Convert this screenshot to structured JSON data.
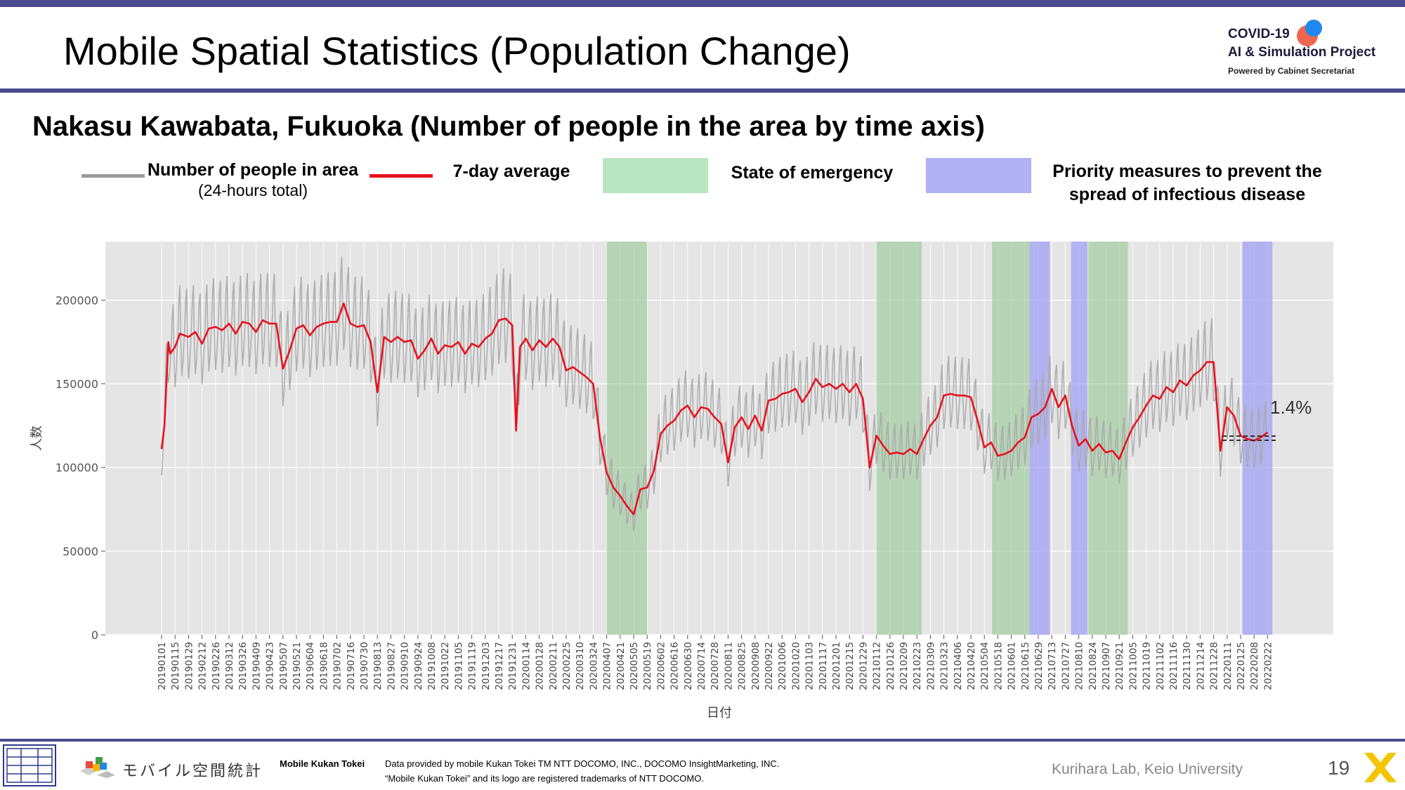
{
  "header": {
    "title": "Mobile Spatial Statistics (Population Change)",
    "logo_line1": "COVID-19",
    "logo_line2": "AI & Simulation Project",
    "logo_line3": "Powered by Cabinet Secretariat"
  },
  "subtitle": "Nakasu Kawabata, Fukuoka (Number of people in the area by time axis)",
  "legend": {
    "people_label": "Number of people in area",
    "people_sub": "(24-hours total)",
    "avg_label": "7-day average",
    "emergency_label": "State of emergency",
    "priority_label_1": "Priority measures to prevent the",
    "priority_label_2": "spread of infectious disease"
  },
  "colors": {
    "accent": "#4b4a8e",
    "daily_line": "#a8a8a8",
    "avg_line": "#e8121d",
    "emergency": "#b9dfb9",
    "priority": "#b1b1f5",
    "plot_bg": "#e5e5e5"
  },
  "chart_data": {
    "type": "line",
    "title": "",
    "xlabel": "日付",
    "ylabel": "人数",
    "ylim": [
      0,
      235000
    ],
    "yticks": [
      0,
      50000,
      100000,
      150000,
      200000
    ],
    "grid": true,
    "x_tick_labels": [
      "20190101",
      "20190115",
      "20190129",
      "20190212",
      "20190226",
      "20190312",
      "20190326",
      "20190409",
      "20190423",
      "20190507",
      "20190521",
      "20190604",
      "20190618",
      "20190702",
      "20190716",
      "20190730",
      "20190813",
      "20190827",
      "20190910",
      "20190924",
      "20191008",
      "20191022",
      "20191105",
      "20191119",
      "20191203",
      "20191217",
      "20191231",
      "20200114",
      "20200128",
      "20200211",
      "20200225",
      "20200310",
      "20200324",
      "20200407",
      "20200421",
      "20200505",
      "20200519",
      "20200602",
      "20200616",
      "20200630",
      "20200714",
      "20200728",
      "20200811",
      "20200825",
      "20200908",
      "20200922",
      "20201006",
      "20201020",
      "20201103",
      "20201117",
      "20201201",
      "20201215",
      "20201229",
      "20210112",
      "20210126",
      "20210209",
      "20210223",
      "20210309",
      "20210323",
      "20210406",
      "20210420",
      "20210504",
      "20210518",
      "20210601",
      "20210615",
      "20210629",
      "20210713",
      "20210727",
      "20210810",
      "20210824",
      "20210907",
      "20210921",
      "20211005",
      "20211019",
      "20211102",
      "20211116",
      "20211130",
      "20211214",
      "20211228",
      "20220111",
      "20220125",
      "20220208",
      "20220222"
    ],
    "series": [
      {
        "name": "7-day average",
        "points": [
          [
            "20190101",
            111000
          ],
          [
            "20190104",
            125000
          ],
          [
            "20190108",
            175000
          ],
          [
            "20190110",
            168000
          ],
          [
            "20190115",
            172000
          ],
          [
            "20190120",
            180000
          ],
          [
            "20190129",
            178000
          ],
          [
            "20190205",
            181000
          ],
          [
            "20190212",
            174000
          ],
          [
            "20190219",
            183000
          ],
          [
            "20190226",
            184000
          ],
          [
            "20190305",
            182000
          ],
          [
            "20190312",
            186000
          ],
          [
            "20190319",
            180000
          ],
          [
            "20190326",
            187000
          ],
          [
            "20190402",
            186000
          ],
          [
            "20190409",
            181000
          ],
          [
            "20190416",
            188000
          ],
          [
            "20190423",
            186000
          ],
          [
            "20190430",
            186000
          ],
          [
            "20190507",
            159000
          ],
          [
            "20190514",
            170000
          ],
          [
            "20190521",
            183000
          ],
          [
            "20190528",
            185000
          ],
          [
            "20190604",
            179000
          ],
          [
            "20190611",
            184000
          ],
          [
            "20190618",
            186000
          ],
          [
            "20190625",
            187000
          ],
          [
            "20190702",
            187000
          ],
          [
            "20190709",
            198000
          ],
          [
            "20190716",
            186000
          ],
          [
            "20190723",
            184000
          ],
          [
            "20190730",
            185000
          ],
          [
            "20190806",
            175000
          ],
          [
            "20190813",
            145000
          ],
          [
            "20190820",
            178000
          ],
          [
            "20190827",
            175000
          ],
          [
            "20190903",
            178000
          ],
          [
            "20190910",
            175000
          ],
          [
            "20190917",
            176000
          ],
          [
            "20190924",
            165000
          ],
          [
            "20191001",
            170000
          ],
          [
            "20191008",
            177000
          ],
          [
            "20191015",
            168000
          ],
          [
            "20191022",
            173000
          ],
          [
            "20191029",
            172000
          ],
          [
            "20191105",
            175000
          ],
          [
            "20191112",
            168000
          ],
          [
            "20191119",
            174000
          ],
          [
            "20191126",
            172000
          ],
          [
            "20191203",
            177000
          ],
          [
            "20191210",
            180000
          ],
          [
            "20191217",
            188000
          ],
          [
            "20191224",
            189000
          ],
          [
            "20191231",
            185000
          ],
          [
            "20200104",
            122000
          ],
          [
            "20200108",
            172000
          ],
          [
            "20200114",
            177000
          ],
          [
            "20200121",
            170000
          ],
          [
            "20200128",
            176000
          ],
          [
            "20200204",
            172000
          ],
          [
            "20200211",
            177000
          ],
          [
            "20200218",
            172000
          ],
          [
            "20200225",
            158000
          ],
          [
            "20200303",
            160000
          ],
          [
            "20200310",
            157000
          ],
          [
            "20200317",
            154000
          ],
          [
            "20200324",
            150000
          ],
          [
            "20200331",
            118000
          ],
          [
            "20200407",
            97000
          ],
          [
            "20200414",
            88000
          ],
          [
            "20200421",
            83000
          ],
          [
            "20200428",
            77000
          ],
          [
            "20200505",
            72000
          ],
          [
            "20200512",
            87000
          ],
          [
            "20200519",
            88000
          ],
          [
            "20200526",
            98000
          ],
          [
            "20200602",
            120000
          ],
          [
            "20200609",
            125000
          ],
          [
            "20200616",
            128000
          ],
          [
            "20200623",
            134000
          ],
          [
            "20200630",
            137000
          ],
          [
            "20200707",
            130000
          ],
          [
            "20200714",
            136000
          ],
          [
            "20200721",
            135000
          ],
          [
            "20200728",
            130000
          ],
          [
            "20200804",
            126000
          ],
          [
            "20200811",
            103000
          ],
          [
            "20200818",
            124000
          ],
          [
            "20200825",
            130000
          ],
          [
            "20200901",
            123000
          ],
          [
            "20200908",
            131000
          ],
          [
            "20200915",
            122000
          ],
          [
            "20200922",
            140000
          ],
          [
            "20200929",
            141000
          ],
          [
            "20201006",
            144000
          ],
          [
            "20201013",
            145000
          ],
          [
            "20201020",
            147000
          ],
          [
            "20201027",
            139000
          ],
          [
            "20201103",
            145000
          ],
          [
            "20201110",
            153000
          ],
          [
            "20201117",
            148000
          ],
          [
            "20201124",
            150000
          ],
          [
            "20201201",
            147000
          ],
          [
            "20201208",
            150000
          ],
          [
            "20201215",
            145000
          ],
          [
            "20201222",
            150000
          ],
          [
            "20201229",
            141000
          ],
          [
            "20210105",
            100000
          ],
          [
            "20210112",
            119000
          ],
          [
            "20210119",
            113000
          ],
          [
            "20210126",
            108000
          ],
          [
            "20210202",
            109000
          ],
          [
            "20210209",
            108000
          ],
          [
            "20210216",
            111000
          ],
          [
            "20210223",
            108000
          ],
          [
            "20210302",
            117000
          ],
          [
            "20210309",
            125000
          ],
          [
            "20210316",
            130000
          ],
          [
            "20210323",
            143000
          ],
          [
            "20210330",
            144000
          ],
          [
            "20210406",
            143000
          ],
          [
            "20210413",
            143000
          ],
          [
            "20210420",
            142000
          ],
          [
            "20210427",
            128000
          ],
          [
            "20210504",
            112000
          ],
          [
            "20210511",
            115000
          ],
          [
            "20210518",
            107000
          ],
          [
            "20210525",
            108000
          ],
          [
            "20210601",
            110000
          ],
          [
            "20210608",
            115000
          ],
          [
            "20210615",
            118000
          ],
          [
            "20210622",
            130000
          ],
          [
            "20210629",
            132000
          ],
          [
            "20210706",
            136000
          ],
          [
            "20210713",
            147000
          ],
          [
            "20210720",
            136000
          ],
          [
            "20210727",
            143000
          ],
          [
            "20210803",
            125000
          ],
          [
            "20210810",
            113000
          ],
          [
            "20210817",
            117000
          ],
          [
            "20210824",
            110000
          ],
          [
            "20210831",
            114000
          ],
          [
            "20210907",
            109000
          ],
          [
            "20210914",
            110000
          ],
          [
            "20210921",
            105000
          ],
          [
            "20210928",
            115000
          ],
          [
            "20211005",
            124000
          ],
          [
            "20211012",
            130000
          ],
          [
            "20211019",
            137000
          ],
          [
            "20211026",
            143000
          ],
          [
            "20211102",
            141000
          ],
          [
            "20211109",
            148000
          ],
          [
            "20211116",
            145000
          ],
          [
            "20211123",
            152000
          ],
          [
            "20211130",
            149000
          ],
          [
            "20211207",
            155000
          ],
          [
            "20211214",
            158000
          ],
          [
            "20211221",
            163000
          ],
          [
            "20211228",
            163000
          ],
          [
            "20220104",
            110000
          ],
          [
            "20220111",
            136000
          ],
          [
            "20220118",
            131000
          ],
          [
            "20220125",
            119000
          ],
          [
            "20220201",
            117000
          ],
          [
            "20220208",
            116000
          ],
          [
            "20220215",
            118000
          ],
          [
            "20220222",
            121000
          ]
        ]
      }
    ],
    "shaded_periods": [
      {
        "type": "State of emergency",
        "start": "20200407",
        "end": "20200519"
      },
      {
        "type": "State of emergency",
        "start": "20210112",
        "end": "20210228"
      },
      {
        "type": "State of emergency",
        "start": "20210512",
        "end": "20210620"
      },
      {
        "type": "Priority measures to prevent the spread of infectious disease",
        "start": "20210620",
        "end": "20210711"
      },
      {
        "type": "Priority measures to prevent the spread of infectious disease",
        "start": "20210802",
        "end": "20210819"
      },
      {
        "type": "State of emergency",
        "start": "20210820",
        "end": "20210930"
      },
      {
        "type": "Priority measures to prevent the spread of infectious disease",
        "start": "20220127",
        "end": "20220227"
      }
    ],
    "annotation": "1.4%"
  },
  "footer": {
    "logo_text": "モバイル空間統計",
    "mk_label": "Mobile Kukan Tokei",
    "data_line1": "Data provided by mobile Kukan Tokei TM NTT DOCOMO, INC., DOCOMO InsightMarketing, INC.",
    "data_line2": "“Mobile Kukan Tokei” and its logo are registered trademarks of NTT DOCOMO.",
    "lab": "Kurihara Lab, Keio University",
    "page": "19"
  }
}
